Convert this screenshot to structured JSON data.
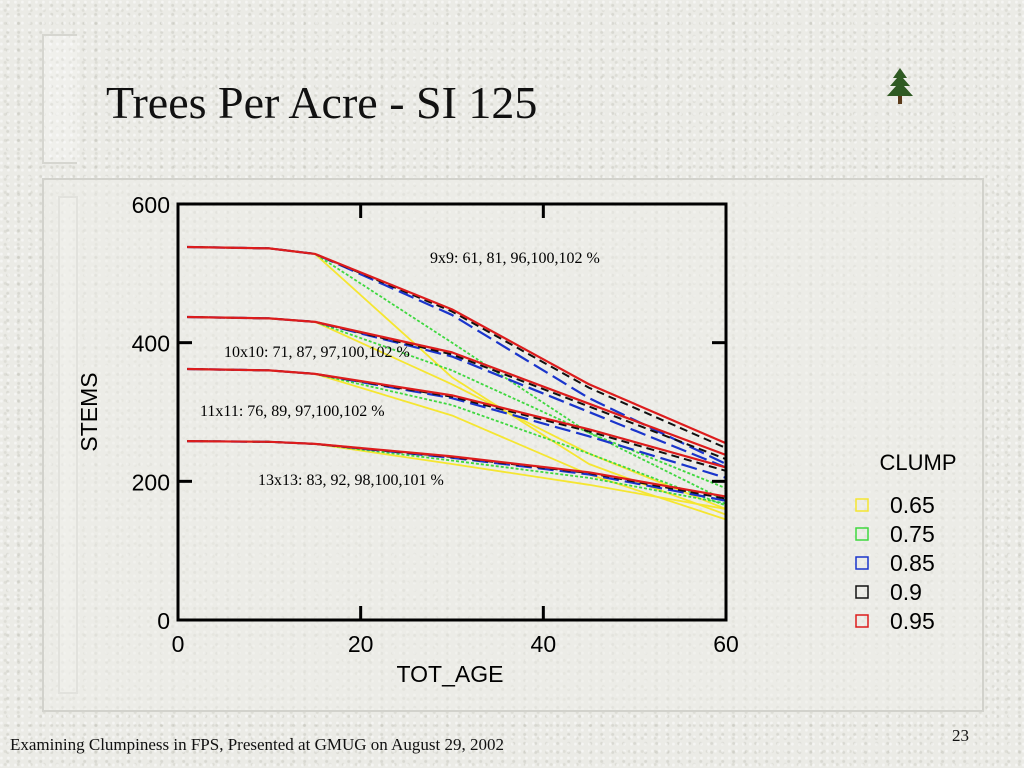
{
  "slide": {
    "title": "Trees Per Acre - SI 125",
    "footer": "Examining Clumpiness in FPS, Presented at GMUG on August 29, 2002",
    "page_number": "23"
  },
  "colors": {
    "0.65": "#f5e631",
    "0.75": "#3fd83f",
    "0.85": "#1a35cc",
    "0.9": "#111111",
    "0.95": "#dd1c1c"
  },
  "chart_data": {
    "type": "line",
    "xlabel": "TOT_AGE",
    "ylabel": "STEMS",
    "xlim": [
      0,
      60
    ],
    "ylim": [
      0,
      600
    ],
    "x_ticks": [
      "0",
      "20",
      "40",
      "60"
    ],
    "y_ticks": [
      "0",
      "200",
      "400",
      "600"
    ],
    "legend_title": "CLUMP",
    "legend_position": "right",
    "legend": [
      "0.65",
      "0.75",
      "0.85",
      "0.9",
      "0.95"
    ],
    "annotations": [
      "9x9: 61, 81, 96,100,102 %",
      "10x10: 71, 87, 97,100,102 %",
      "11x11: 76, 89, 97,100,102 %",
      "13x13: 83, 92, 98,100,101 %"
    ],
    "groups": [
      {
        "label": "9x9",
        "series": [
          {
            "clump": "0.65",
            "x": [
              1,
              10,
              15,
              30,
              45,
              60
            ],
            "y": [
              538,
              536,
              528,
              350,
              225,
              152
            ]
          },
          {
            "clump": "0.75",
            "x": [
              1,
              10,
              15,
              30,
              45,
              60
            ],
            "y": [
              538,
              536,
              528,
              400,
              270,
              172
            ]
          },
          {
            "clump": "0.85",
            "x": [
              1,
              10,
              15,
              30,
              45,
              60
            ],
            "y": [
              538,
              536,
              528,
              440,
              320,
              225
            ]
          },
          {
            "clump": "0.9",
            "x": [
              1,
              10,
              15,
              30,
              45,
              60
            ],
            "y": [
              538,
              536,
              528,
              445,
              335,
              248
            ]
          },
          {
            "clump": "0.95",
            "x": [
              1,
              10,
              15,
              30,
              45,
              60
            ],
            "y": [
              538,
              536,
              528,
              448,
              340,
              255
            ]
          }
        ]
      },
      {
        "label": "10x10",
        "series": [
          {
            "clump": "0.65",
            "x": [
              1,
              10,
              15,
              30,
              45,
              60
            ],
            "y": [
              437,
              435,
              430,
              340,
              240,
              160
            ]
          },
          {
            "clump": "0.75",
            "x": [
              1,
              10,
              15,
              30,
              45,
              60
            ],
            "y": [
              437,
              435,
              430,
              360,
              270,
              190
            ]
          },
          {
            "clump": "0.85",
            "x": [
              1,
              10,
              15,
              30,
              45,
              60
            ],
            "y": [
              437,
              435,
              430,
              380,
              300,
              220
            ]
          },
          {
            "clump": "0.9",
            "x": [
              1,
              10,
              15,
              30,
              45,
              60
            ],
            "y": [
              437,
              435,
              430,
              383,
              308,
              232
            ]
          },
          {
            "clump": "0.95",
            "x": [
              1,
              10,
              15,
              30,
              45,
              60
            ],
            "y": [
              437,
              435,
              430,
              386,
              312,
              238
            ]
          }
        ]
      },
      {
        "label": "11x11",
        "series": [
          {
            "clump": "0.65",
            "x": [
              1,
              10,
              15,
              30,
              45,
              60
            ],
            "y": [
              362,
              360,
              355,
              295,
              210,
              145
            ]
          },
          {
            "clump": "0.75",
            "x": [
              1,
              10,
              15,
              30,
              45,
              60
            ],
            "y": [
              362,
              360,
              355,
              310,
              240,
              165
            ]
          },
          {
            "clump": "0.85",
            "x": [
              1,
              10,
              15,
              30,
              45,
              60
            ],
            "y": [
              362,
              360,
              355,
              320,
              265,
              205
            ]
          },
          {
            "clump": "0.9",
            "x": [
              1,
              10,
              15,
              30,
              45,
              60
            ],
            "y": [
              362,
              360,
              355,
              322,
              272,
              215
            ]
          },
          {
            "clump": "0.95",
            "x": [
              1,
              10,
              15,
              30,
              45,
              60
            ],
            "y": [
              362,
              360,
              355,
              324,
              275,
              220
            ]
          }
        ]
      },
      {
        "label": "13x13",
        "series": [
          {
            "clump": "0.65",
            "x": [
              1,
              10,
              15,
              30,
              45,
              60
            ],
            "y": [
              258,
              257,
              254,
              225,
              195,
              160
            ]
          },
          {
            "clump": "0.75",
            "x": [
              1,
              10,
              15,
              30,
              45,
              60
            ],
            "y": [
              258,
              257,
              254,
              230,
              205,
              168
            ]
          },
          {
            "clump": "0.85",
            "x": [
              1,
              10,
              15,
              30,
              45,
              60
            ],
            "y": [
              258,
              257,
              254,
              234,
              210,
              172
            ]
          },
          {
            "clump": "0.9",
            "x": [
              1,
              10,
              15,
              30,
              45,
              60
            ],
            "y": [
              258,
              257,
              254,
              235,
              212,
              175
            ]
          },
          {
            "clump": "0.95",
            "x": [
              1,
              10,
              15,
              30,
              45,
              60
            ],
            "y": [
              258,
              257,
              254,
              236,
              213,
              178
            ]
          }
        ]
      }
    ]
  }
}
